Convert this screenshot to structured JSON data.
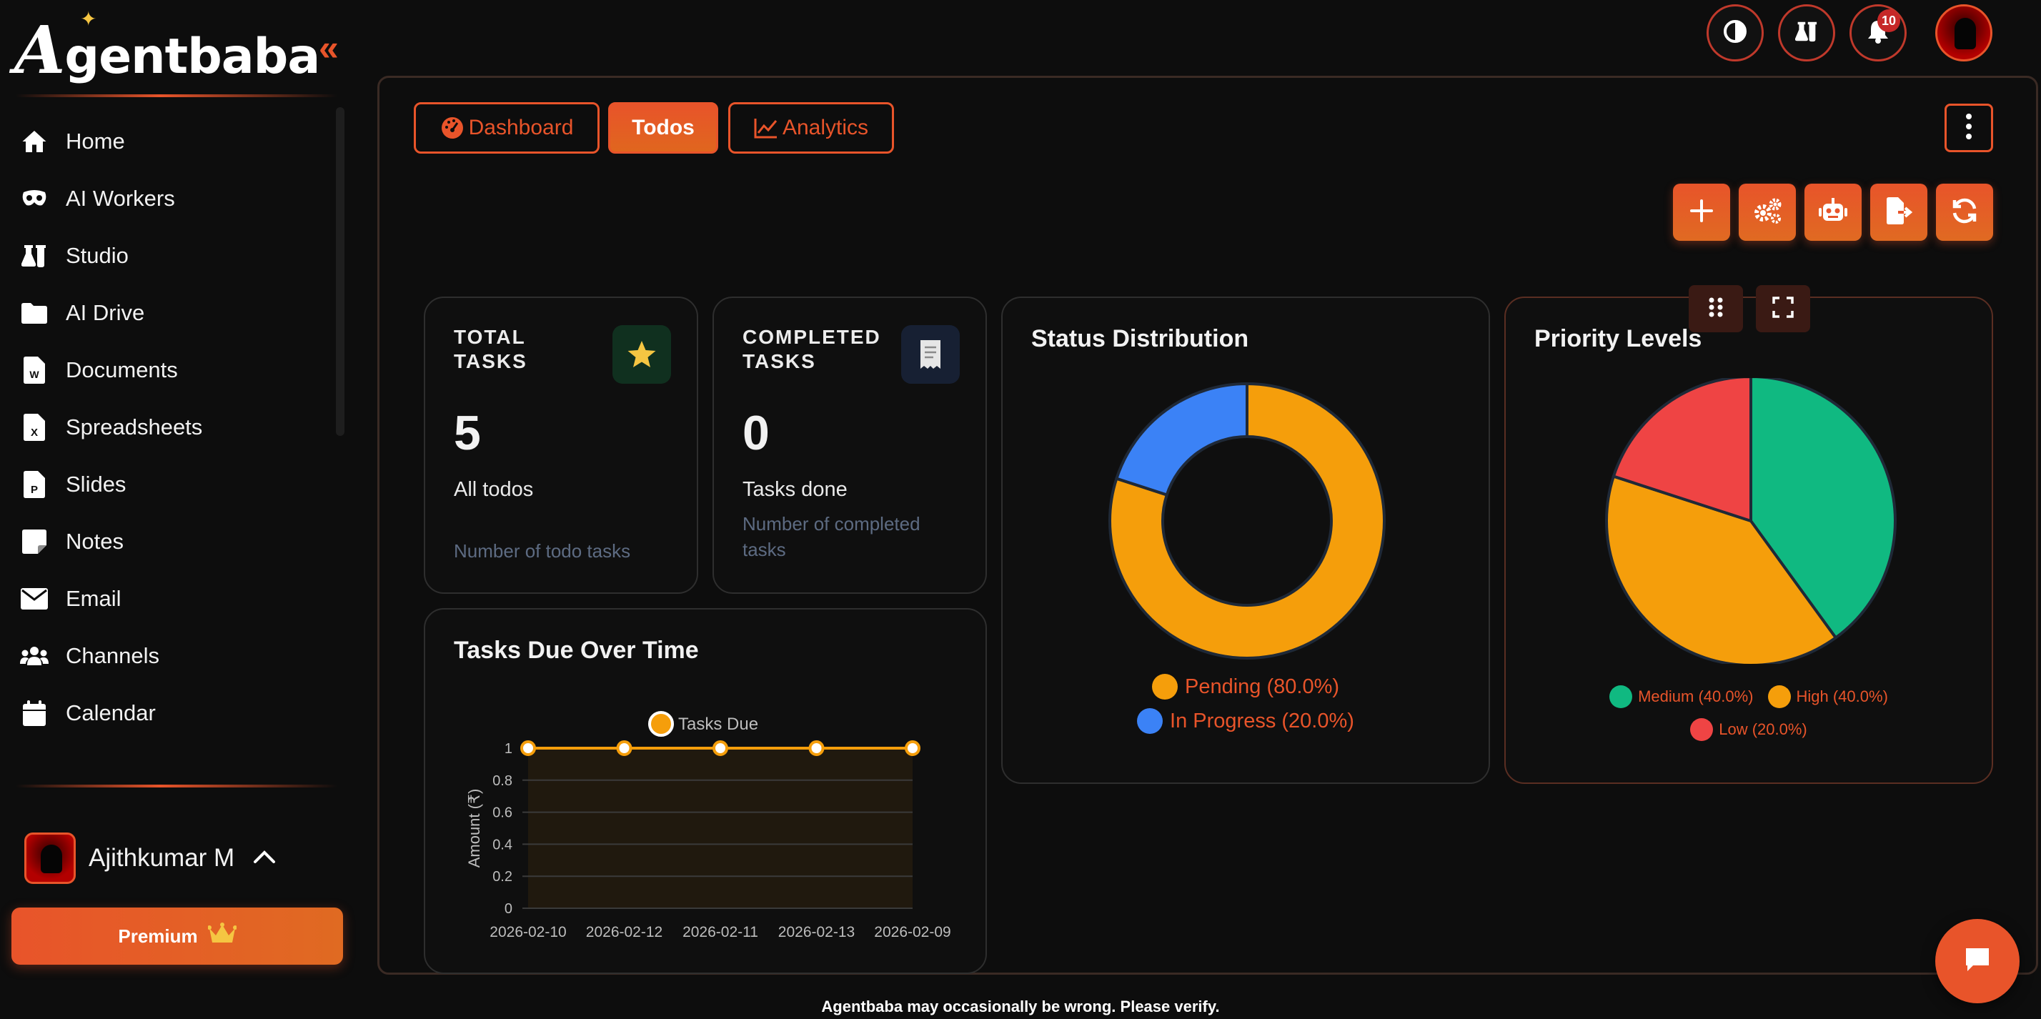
{
  "app": {
    "name": "Agentbaba"
  },
  "sidebar": {
    "items": [
      {
        "label": "Home",
        "icon": "home-icon"
      },
      {
        "label": "AI Workers",
        "icon": "mask-icon"
      },
      {
        "label": "Studio",
        "icon": "flask-icon"
      },
      {
        "label": "AI Drive",
        "icon": "folder-icon"
      },
      {
        "label": "Documents",
        "icon": "word-doc-icon"
      },
      {
        "label": "Spreadsheets",
        "icon": "excel-doc-icon"
      },
      {
        "label": "Slides",
        "icon": "powerpoint-doc-icon"
      },
      {
        "label": "Notes",
        "icon": "note-icon"
      },
      {
        "label": "Email",
        "icon": "envelope-icon"
      },
      {
        "label": "Channels",
        "icon": "users-icon"
      },
      {
        "label": "Calendar",
        "icon": "calendar-icon"
      }
    ],
    "user": {
      "name": "Ajithkumar M"
    },
    "premium_label": "Premium"
  },
  "topbar": {
    "notifications_count": "10"
  },
  "tabs": [
    {
      "label": "Dashboard",
      "active": false
    },
    {
      "label": "Todos",
      "active": true
    },
    {
      "label": "Analytics",
      "active": false
    }
  ],
  "stats": {
    "total": {
      "title": "TOTAL TASKS",
      "value": "5",
      "sub": "All todos",
      "desc": "Number of todo tasks"
    },
    "completed": {
      "title": "COMPLETED TASKS",
      "value": "0",
      "sub": "Tasks done",
      "desc": "Number of completed tasks"
    }
  },
  "status_chart": {
    "title": "Status Distribution",
    "legend": [
      {
        "label": "Pending (80.0%)",
        "color": "#f59e0b"
      },
      {
        "label": "In Progress (20.0%)",
        "color": "#3b82f6"
      }
    ]
  },
  "priority_chart": {
    "title": "Priority Levels",
    "legend": [
      {
        "label": "Medium (40.0%)",
        "color": "#10b981"
      },
      {
        "label": "High (40.0%)",
        "color": "#f59e0b"
      },
      {
        "label": "Low (20.0%)",
        "color": "#ef4444"
      }
    ]
  },
  "due_chart": {
    "title": "Tasks Due Over Time",
    "legend_label": "Tasks Due",
    "ylabel": "Amount (₹)",
    "yticks": [
      "0",
      "0.2",
      "0.4",
      "0.6",
      "0.8",
      "1"
    ]
  },
  "chart_data": [
    {
      "type": "pie",
      "title": "Status Distribution",
      "donut": true,
      "categories": [
        "Pending",
        "In Progress"
      ],
      "values": [
        80.0,
        20.0
      ],
      "colors": [
        "#f59e0b",
        "#3b82f6"
      ]
    },
    {
      "type": "pie",
      "title": "Priority Levels",
      "categories": [
        "Medium",
        "High",
        "Low"
      ],
      "values": [
        40.0,
        40.0,
        20.0
      ],
      "colors": [
        "#10b981",
        "#f59e0b",
        "#ef4444"
      ]
    },
    {
      "type": "line",
      "title": "Tasks Due Over Time",
      "categories": [
        "2026-02-10",
        "2026-02-12",
        "2026-02-11",
        "2026-02-13",
        "2026-02-09"
      ],
      "series": [
        {
          "name": "Tasks Due",
          "values": [
            1,
            1,
            1,
            1,
            1
          ]
        }
      ],
      "ylabel": "Amount (₹)",
      "ylim": [
        0,
        1
      ],
      "color": "#f59e0b"
    }
  ],
  "footer": {
    "note": "Agentbaba may occasionally be wrong. Please verify."
  },
  "colors": {
    "accent": "#e8542a",
    "background": "#0d0d0d"
  }
}
